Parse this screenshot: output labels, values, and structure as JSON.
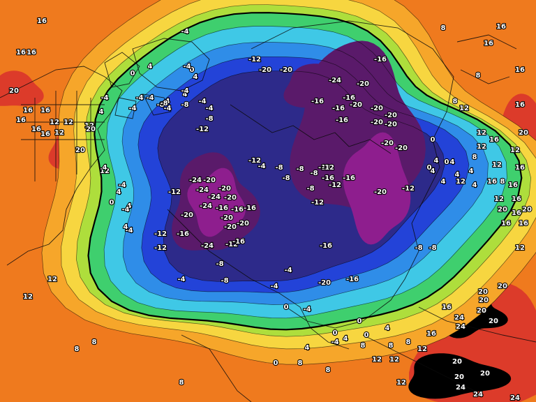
{
  "map": {
    "band_colors": {
      "20": "#dc3b2a",
      "16": "#ef7a1e",
      "12": "#f6a62a",
      "8": "#f7d640",
      "4": "#aede3c",
      "0": "#3fcf6e",
      "-4": "#3fc8e6",
      "-8": "#2f8de8",
      "-12": "#2343d8",
      "-16": "#2d2a8a",
      "-20": "#5a1a6a",
      "-24": "#8e1e8e"
    },
    "contour_labels": [
      "20",
      "16",
      "16",
      "16",
      "16",
      "16",
      "16",
      "16",
      "20",
      "12",
      "12",
      "16",
      "12",
      "12",
      "20",
      "12",
      "12",
      "12",
      "8",
      "8",
      "8",
      "4",
      "4",
      "4",
      "4",
      "0",
      "4",
      "0",
      "4",
      "0",
      "4",
      "4",
      "4",
      "0",
      "8",
      "8",
      "16",
      "16",
      "16",
      "16",
      "12",
      "12",
      "12",
      "8",
      "8",
      "8",
      "4",
      "4",
      "0",
      "4",
      "4",
      "8",
      "12",
      "16",
      "8",
      "12",
      "16",
      "20",
      "16",
      "12",
      "16",
      "20",
      "16",
      "12",
      "16",
      "16",
      "16",
      "20",
      "12",
      "20",
      "20",
      "20",
      "24",
      "20",
      "20",
      "20",
      "20",
      "16",
      "24",
      "24",
      "24",
      "24",
      "12",
      "12",
      "12",
      "8",
      "8",
      "8",
      "12",
      "16",
      "20",
      "-4",
      "-4",
      "-4",
      "-4",
      "-4",
      "-4",
      "-4",
      "-8",
      "-8",
      "-8",
      "-4",
      "-4",
      "-4",
      "-8",
      "-12",
      "-12",
      "-8",
      "-4",
      "-8",
      "-8",
      "-8",
      "-12",
      "-16",
      "-8",
      "-12",
      "-16",
      "-12",
      "-12",
      "-20",
      "-20",
      "-16",
      "-16",
      "-20",
      "-20",
      "-20",
      "-20",
      "-16",
      "-16",
      "-20",
      "-20",
      "-20",
      "-20",
      "-24",
      "-16",
      "-12",
      "-20",
      "-12",
      "-8",
      "-8",
      "-16",
      "-20",
      "-16",
      "-24",
      "-20",
      "-24",
      "-20",
      "-24",
      "-20",
      "-16",
      "-16",
      "-16",
      "-24",
      "-20",
      "-20",
      "-20",
      "-20",
      "-12",
      "-12",
      "-16",
      "-12",
      "-24",
      "-16",
      "-12",
      "-8",
      "-8",
      "-4",
      "-4",
      "-4",
      "-4",
      "-4",
      "-4",
      "0",
      "-4",
      "4",
      "0",
      "-4",
      "4",
      "0",
      "0",
      "4",
      "0",
      "0",
      "4",
      "4",
      "4"
    ]
  }
}
